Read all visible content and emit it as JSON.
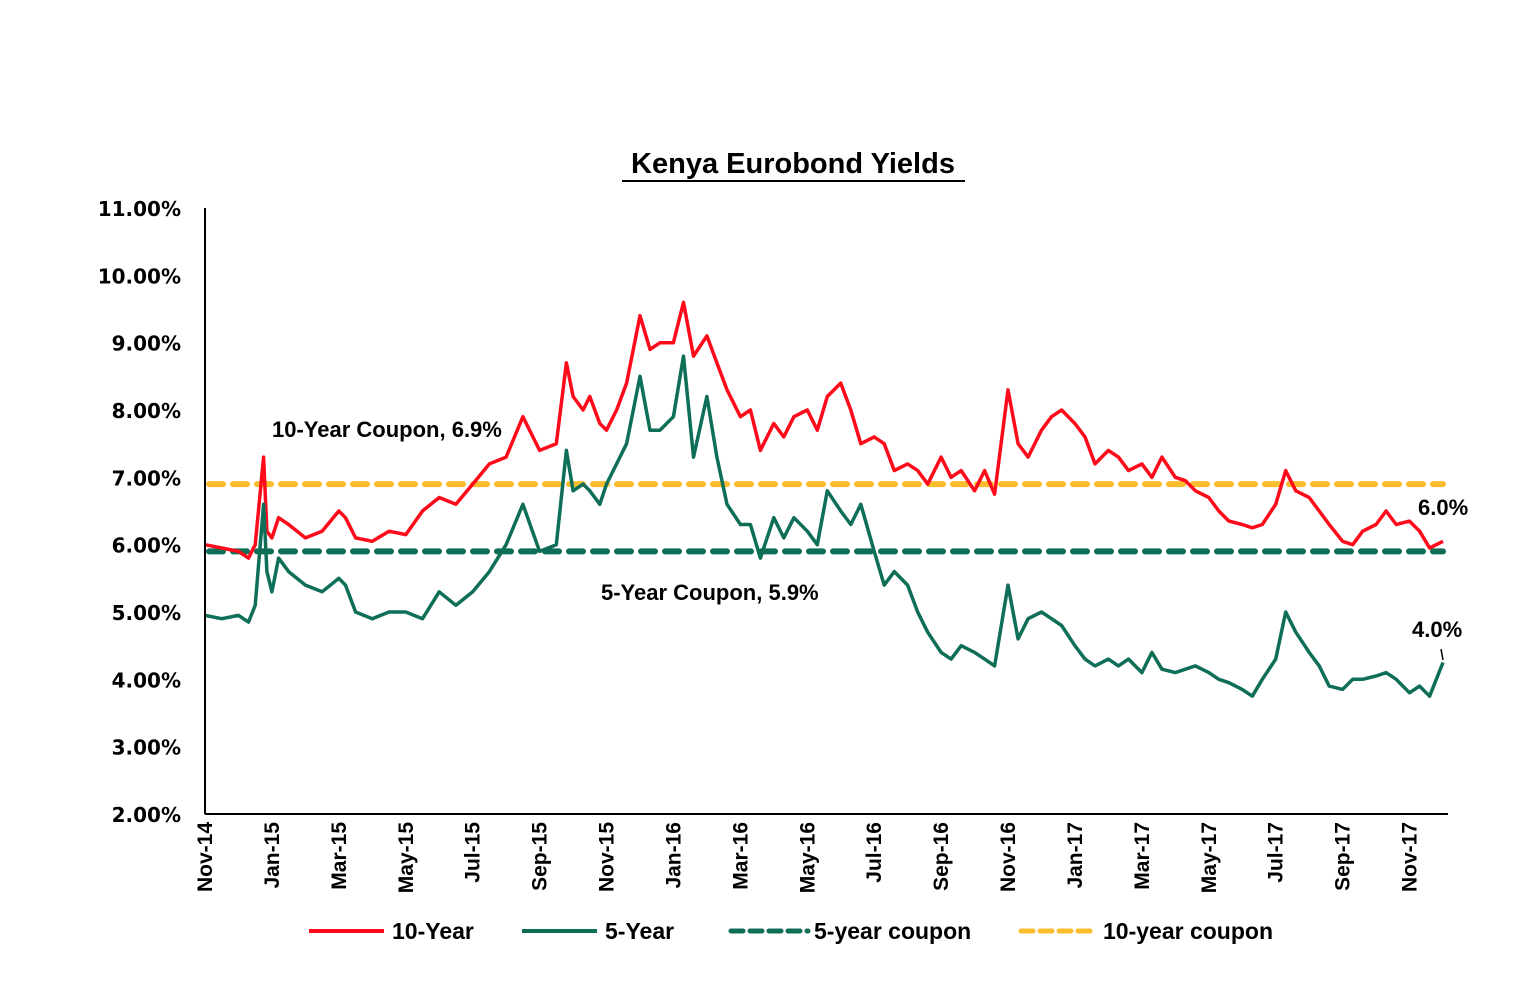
{
  "chart_data": {
    "type": "line",
    "title": "Kenya Eurobond Yields",
    "xlabel": "",
    "ylabel": "",
    "ylim": [
      2.0,
      11.0
    ],
    "yticks": [
      "2.00%",
      "3.00%",
      "4.00%",
      "5.00%",
      "6.00%",
      "7.00%",
      "8.00%",
      "9.00%",
      "10.00%",
      "11.00%"
    ],
    "ytick_values": [
      2,
      3,
      4,
      5,
      6,
      7,
      8,
      9,
      10,
      11
    ],
    "xticks": [
      "Nov-14",
      "Jan-15",
      "Mar-15",
      "May-15",
      "Jul-15",
      "Sep-15",
      "Nov-15",
      "Jan-16",
      "Mar-16",
      "May-16",
      "Jul-16",
      "Sep-16",
      "Nov-16",
      "Jan-17",
      "Mar-17",
      "May-17",
      "Jul-17",
      "Sep-17",
      "Nov-17"
    ],
    "x_range_months": [
      0,
      37
    ],
    "grid": false,
    "legend_position": "bottom",
    "series": [
      {
        "name": "10-Year",
        "color": "#ff0a1a",
        "style": "solid",
        "x_months": [
          0,
          0.5,
          1,
          1.3,
          1.5,
          1.75,
          1.85,
          2,
          2.2,
          2.5,
          3,
          3.5,
          4,
          4.2,
          4.5,
          5,
          5.5,
          6,
          6.5,
          7,
          7.5,
          8,
          8.5,
          9,
          9.5,
          10,
          10.5,
          10.8,
          11,
          11.3,
          11.5,
          11.8,
          12,
          12.3,
          12.6,
          13,
          13.3,
          13.6,
          14,
          14.3,
          14.6,
          15,
          15.3,
          15.6,
          16,
          16.3,
          16.6,
          17,
          17.3,
          17.6,
          18,
          18.3,
          18.6,
          19,
          19.3,
          19.6,
          20,
          20.3,
          20.6,
          21,
          21.3,
          21.6,
          22,
          22.3,
          22.6,
          23,
          23.3,
          23.6,
          24,
          24.3,
          24.6,
          25,
          25.3,
          25.6,
          26,
          26.3,
          26.6,
          27,
          27.3,
          27.6,
          28,
          28.3,
          28.6,
          29,
          29.3,
          29.6,
          30,
          30.3,
          30.6,
          31,
          31.3,
          31.6,
          32,
          32.3,
          32.6,
          33,
          33.3,
          33.6,
          34,
          34.3,
          34.6,
          35,
          35.3,
          35.6,
          36,
          36.3,
          36.6,
          37
        ],
        "values": [
          6.0,
          5.95,
          5.9,
          5.8,
          6.0,
          7.3,
          6.2,
          6.1,
          6.4,
          6.3,
          6.1,
          6.2,
          6.5,
          6.4,
          6.1,
          6.05,
          6.2,
          6.15,
          6.5,
          6.7,
          6.6,
          6.9,
          7.2,
          7.3,
          7.9,
          7.4,
          7.5,
          8.7,
          8.2,
          8.0,
          8.2,
          7.8,
          7.7,
          8.0,
          8.4,
          9.4,
          8.9,
          9.0,
          9.0,
          9.6,
          8.8,
          9.1,
          8.7,
          8.3,
          7.9,
          8.0,
          7.4,
          7.8,
          7.6,
          7.9,
          8.0,
          7.7,
          8.2,
          8.4,
          8.0,
          7.5,
          7.6,
          7.5,
          7.1,
          7.2,
          7.1,
          6.9,
          7.3,
          7.0,
          7.1,
          6.8,
          7.1,
          6.75,
          8.3,
          7.5,
          7.3,
          7.7,
          7.9,
          8.0,
          7.8,
          7.6,
          7.2,
          7.4,
          7.3,
          7.1,
          7.2,
          7.0,
          7.3,
          7.0,
          6.95,
          6.8,
          6.7,
          6.5,
          6.35,
          6.3,
          6.25,
          6.3,
          6.6,
          7.1,
          6.8,
          6.7,
          6.5,
          6.3,
          6.05,
          6.0,
          6.2,
          6.3,
          6.5,
          6.3,
          6.35,
          6.2,
          5.95,
          6.05
        ]
      },
      {
        "name": "5-Year",
        "color": "#0e6e58",
        "style": "solid",
        "x_months": [
          0,
          0.5,
          1,
          1.3,
          1.5,
          1.75,
          1.85,
          2,
          2.2,
          2.5,
          3,
          3.5,
          4,
          4.2,
          4.5,
          5,
          5.5,
          6,
          6.5,
          7,
          7.5,
          8,
          8.5,
          9,
          9.5,
          10,
          10.5,
          10.8,
          11,
          11.3,
          11.5,
          11.8,
          12,
          12.3,
          12.6,
          13,
          13.3,
          13.6,
          14,
          14.3,
          14.6,
          15,
          15.3,
          15.6,
          16,
          16.3,
          16.6,
          17,
          17.3,
          17.6,
          18,
          18.3,
          18.6,
          19,
          19.3,
          19.6,
          20,
          20.3,
          20.6,
          21,
          21.3,
          21.6,
          22,
          22.3,
          22.6,
          23,
          23.3,
          23.6,
          24,
          24.3,
          24.6,
          25,
          25.3,
          25.6,
          26,
          26.3,
          26.6,
          27,
          27.3,
          27.6,
          28,
          28.3,
          28.6,
          29,
          29.3,
          29.6,
          30,
          30.3,
          30.6,
          31,
          31.3,
          31.6,
          32,
          32.3,
          32.6,
          33,
          33.3,
          33.6,
          34,
          34.3,
          34.6,
          35,
          35.3,
          35.6,
          36,
          36.3,
          36.6,
          37
        ],
        "values": [
          4.95,
          4.9,
          4.95,
          4.85,
          5.1,
          6.6,
          5.6,
          5.3,
          5.8,
          5.6,
          5.4,
          5.3,
          5.5,
          5.4,
          5.0,
          4.9,
          5.0,
          5.0,
          4.9,
          5.3,
          5.1,
          5.3,
          5.6,
          6.0,
          6.6,
          5.9,
          6.0,
          7.4,
          6.8,
          6.9,
          6.8,
          6.6,
          6.9,
          7.2,
          7.5,
          8.5,
          7.7,
          7.7,
          7.9,
          8.8,
          7.3,
          8.2,
          7.3,
          6.6,
          6.3,
          6.3,
          5.8,
          6.4,
          6.1,
          6.4,
          6.2,
          6.0,
          6.8,
          6.5,
          6.3,
          6.6,
          5.9,
          5.4,
          5.6,
          5.4,
          5.0,
          4.7,
          4.4,
          4.3,
          4.5,
          4.4,
          4.3,
          4.2,
          5.4,
          4.6,
          4.9,
          5.0,
          4.9,
          4.8,
          4.5,
          4.3,
          4.2,
          4.3,
          4.2,
          4.3,
          4.1,
          4.4,
          4.15,
          4.1,
          4.15,
          4.2,
          4.1,
          4.0,
          3.95,
          3.85,
          3.75,
          4.0,
          4.3,
          5.0,
          4.7,
          4.4,
          4.2,
          3.9,
          3.85,
          4.0,
          4.0,
          4.05,
          4.1,
          4.0,
          3.8,
          3.9,
          3.75,
          4.25
        ]
      },
      {
        "name": "5-year coupon",
        "color": "#0e6e58",
        "style": "dashed",
        "constant": 5.9
      },
      {
        "name": "10-year coupon",
        "color": "#fbbd2e",
        "style": "dashed",
        "constant": 6.9
      }
    ],
    "annotations": [
      {
        "text": "10-Year Coupon, 6.9%"
      },
      {
        "text": "5-Year Coupon, 5.9%"
      },
      {
        "text": "6.0%"
      },
      {
        "text": "4.0%"
      }
    ]
  }
}
